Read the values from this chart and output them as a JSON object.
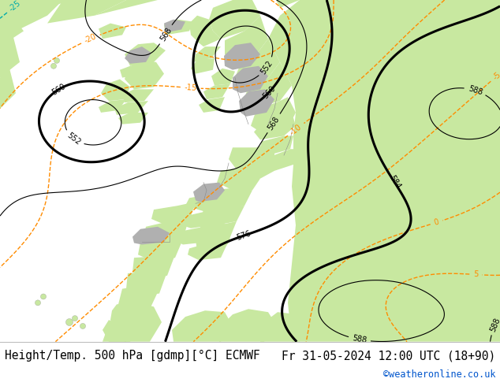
{
  "title_left": "Height/Temp. 500 hPa [gdmp][°C] ECMWF",
  "title_right": "Fr 31-05-2024 12:00 UTC (18+90)",
  "credit": "©weatheronline.co.uk",
  "bg_color": "#ffffff",
  "sea_color": "#d4d4d4",
  "land_green": "#c8e8a0",
  "mountain_gray": "#b0b0b0",
  "text_color": "#000000",
  "credit_color": "#0055cc",
  "font_size_title": 10.5,
  "font_size_credit": 8.5,
  "fig_width": 6.34,
  "fig_height": 4.9,
  "dpi": 100
}
